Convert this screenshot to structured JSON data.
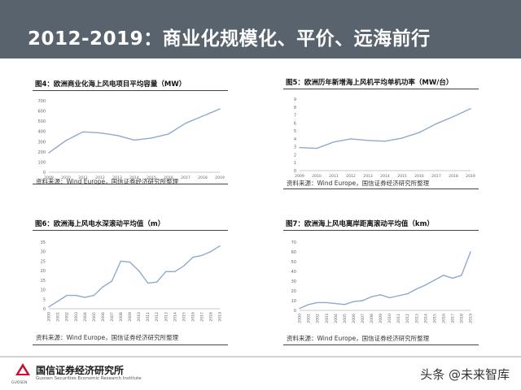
{
  "page": {
    "title": "2012-2019：商业化规模化、平价、远海前行",
    "footer": {
      "logo_cn": "国信证券经济研究所",
      "logo_en": "Guosen Securities Economic Research Institute",
      "logo_abbr": "GUOSEN",
      "watermark": "头条 @未来智库"
    }
  },
  "chart_data": [
    {
      "type": "line",
      "title": "图4：欧洲商业化海上风电项目平均容量（MW）",
      "x": [
        "2009",
        "2010",
        "2011",
        "2012",
        "2013",
        "2014",
        "2015",
        "2016",
        "2017",
        "2018",
        "2019"
      ],
      "series": [
        {
          "values": [
            190,
            310,
            395,
            385,
            360,
            315,
            335,
            375,
            480,
            550,
            620
          ]
        }
      ],
      "ylim": [
        0,
        700
      ],
      "yticks": [
        0,
        100,
        200,
        300,
        400,
        500,
        600,
        700
      ],
      "grid": false,
      "color": "#8faacc",
      "source": "资料来源：Wind Europe，国信证券经济研究所整理"
    },
    {
      "type": "line",
      "title": "图5：欧洲历年新增海上风机平均单机功率（MW/台）",
      "x": [
        "2009",
        "2010",
        "2011",
        "2012",
        "2013",
        "2014",
        "2015",
        "2016",
        "2017",
        "2018",
        "2019"
      ],
      "series": [
        {
          "values": [
            2.9,
            2.8,
            3.6,
            4.0,
            3.8,
            3.7,
            4.1,
            4.8,
            5.9,
            6.8,
            7.8
          ]
        }
      ],
      "ylim": [
        0,
        9
      ],
      "yticks": [
        0,
        1,
        2,
        3,
        4,
        5,
        6,
        7,
        8,
        9
      ],
      "grid": false,
      "color": "#8faacc",
      "source": "资料来源：Wind Europe，国信证券经济研究所整理"
    },
    {
      "type": "line",
      "title": "图6：欧洲海上风电水深滚动平均值（m）",
      "x": [
        "2000",
        "2001",
        "2002",
        "2003",
        "2004",
        "2005",
        "2006",
        "2007",
        "2008",
        "2009",
        "2010",
        "2011",
        "2012",
        "2013",
        "2014",
        "2015",
        "2016",
        "2017",
        "2018",
        "2019"
      ],
      "series": [
        {
          "values": [
            1,
            4,
            7,
            7,
            6,
            7,
            11.5,
            14.5,
            25,
            24.5,
            20,
            13.5,
            14,
            19.5,
            19.5,
            22.5,
            27,
            28,
            30,
            33
          ]
        }
      ],
      "ylim": [
        0,
        35
      ],
      "yticks": [
        0,
        5,
        10,
        15,
        20,
        25,
        30,
        35
      ],
      "grid": false,
      "color": "#8faacc",
      "source": "资料来源：Wind Europe，国信证券经济研究所整理"
    },
    {
      "type": "line",
      "title": "图7：欧洲海上风电离岸距离滚动平均值（km）",
      "x": [
        "2000",
        "2001",
        "2002",
        "2003",
        "2004",
        "2005",
        "2006",
        "2007",
        "2008",
        "2009",
        "2010",
        "2011",
        "2012",
        "2013",
        "2014",
        "2015",
        "2016",
        "2017",
        "2018",
        "2019"
      ],
      "series": [
        {
          "values": [
            2,
            6,
            8,
            8,
            7,
            6,
            9,
            10,
            14,
            16,
            13,
            15,
            17,
            22,
            26,
            31,
            36,
            33,
            36,
            60
          ]
        }
      ],
      "ylim": [
        0,
        70
      ],
      "yticks": [
        0,
        10,
        20,
        30,
        40,
        50,
        60,
        70
      ],
      "grid": false,
      "color": "#8faacc",
      "source": "资料来源：Wind Europe，国信证券经济研究所整理"
    }
  ]
}
